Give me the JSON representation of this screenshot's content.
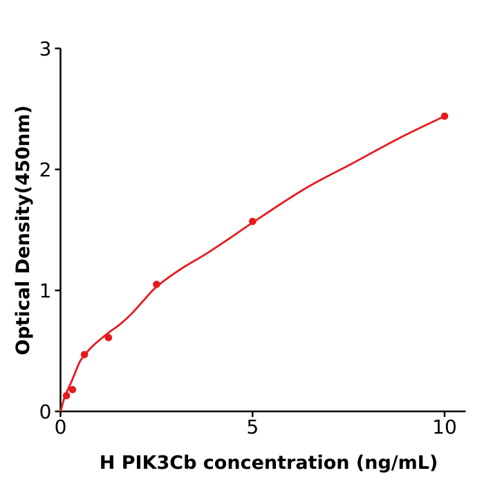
{
  "figure": {
    "background": "#ffffff",
    "title": ""
  },
  "style": {
    "curve_color": "#e8191c",
    "marker_color": "#e8191c",
    "axis_color": "#000000",
    "text_color": "#000000"
  },
  "chart_data": {
    "type": "scatter",
    "title": "",
    "xlabel": "H  PIK3Cb concentration (ng/mL)",
    "ylabel": "Optical Density(450nm)",
    "xlim": [
      0,
      10.55
    ],
    "ylim": [
      0,
      3
    ],
    "x_ticks": [
      0,
      5,
      10
    ],
    "y_ticks": [
      0,
      1,
      2,
      3
    ],
    "grid": false,
    "legend": "none",
    "series": [
      {
        "name": "standard_points",
        "type": "scatter",
        "marker": "circle",
        "points": [
          [
            0.156,
            0.13
          ],
          [
            0.3125,
            0.18
          ],
          [
            0.625,
            0.47
          ],
          [
            1.25,
            0.61
          ],
          [
            2.5,
            1.05
          ],
          [
            5,
            1.57
          ],
          [
            10,
            2.44
          ]
        ]
      },
      {
        "name": "fitted_curve",
        "type": "line",
        "points": [
          [
            0,
            0.005
          ],
          [
            0.02,
            0.02
          ],
          [
            0.08,
            0.09
          ],
          [
            0.16,
            0.16
          ],
          [
            0.25,
            0.22
          ],
          [
            0.33,
            0.28
          ],
          [
            0.42,
            0.35
          ],
          [
            0.52,
            0.42
          ],
          [
            0.69,
            0.49
          ],
          [
            0.87,
            0.55
          ],
          [
            1.25,
            0.65
          ],
          [
            1.55,
            0.72
          ],
          [
            1.86,
            0.81
          ],
          [
            2.2,
            0.93
          ],
          [
            2.5,
            1.03
          ],
          [
            3.1,
            1.17
          ],
          [
            3.78,
            1.3
          ],
          [
            4.4,
            1.43
          ],
          [
            5,
            1.56
          ],
          [
            6.36,
            1.84
          ],
          [
            7.6,
            2.05
          ],
          [
            8.83,
            2.26
          ],
          [
            10,
            2.44
          ]
        ]
      }
    ]
  }
}
